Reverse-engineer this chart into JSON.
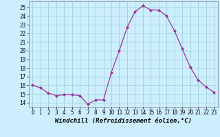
{
  "x": [
    0,
    1,
    2,
    3,
    4,
    5,
    6,
    7,
    8,
    9,
    10,
    11,
    12,
    13,
    14,
    15,
    16,
    17,
    18,
    19,
    20,
    21,
    22,
    23
  ],
  "y": [
    16,
    15.7,
    15.1,
    14.8,
    14.9,
    14.9,
    14.8,
    13.8,
    14.3,
    14.3,
    17.5,
    20.0,
    22.7,
    24.5,
    25.2,
    24.7,
    24.7,
    24.0,
    22.3,
    20.2,
    18.1,
    16.6,
    15.8,
    15.2
  ],
  "line_color": "#993399",
  "marker": "D",
  "marker_size": 2,
  "bg_color": "#cceeff",
  "grid_color": "#99cccc",
  "xlabel": "Windchill (Refroidissement éolien,°C)",
  "xlim": [
    -0.5,
    23.5
  ],
  "ylim": [
    13.5,
    25.7
  ],
  "yticks": [
    14,
    15,
    16,
    17,
    18,
    19,
    20,
    21,
    22,
    23,
    24,
    25
  ],
  "xticks": [
    0,
    1,
    2,
    3,
    4,
    5,
    6,
    7,
    8,
    9,
    10,
    11,
    12,
    13,
    14,
    15,
    16,
    17,
    18,
    19,
    20,
    21,
    22,
    23
  ],
  "tick_label_size": 5.5,
  "xlabel_size": 6.5
}
